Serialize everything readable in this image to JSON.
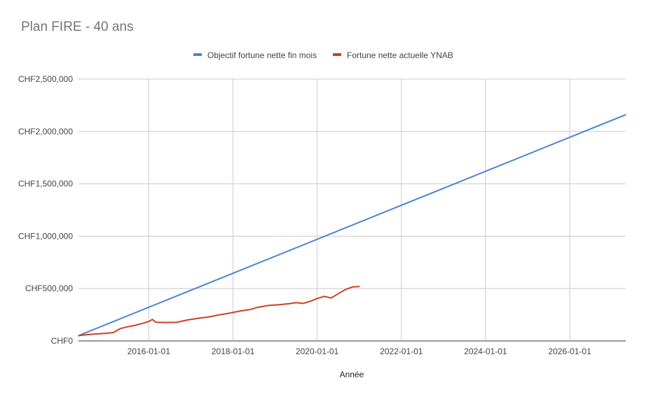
{
  "chart_data": {
    "type": "line",
    "title": "Plan FIRE - 40 ans",
    "xlabel": "Année",
    "ylabel": "",
    "x_range": [
      "2014-05-01",
      "2027-05-01"
    ],
    "ylim": [
      0,
      2500000
    ],
    "y_ticks": [
      0,
      500000,
      1000000,
      1500000,
      2000000,
      2500000
    ],
    "y_tick_labels": [
      "CHF0",
      "CHF500,000",
      "CHF1,000,000",
      "CHF1,500,000",
      "CHF2,000,000",
      "CHF2,500,000"
    ],
    "x_ticks": [
      "2016-01-01",
      "2018-01-01",
      "2020-01-01",
      "2022-01-01",
      "2024-01-01",
      "2026-01-01"
    ],
    "grid": true,
    "legend_position": "top",
    "series": [
      {
        "name": "Objectif fortune nette fin mois",
        "color": "#4a86cf",
        "points": [
          [
            "2014-05-01",
            50000
          ],
          [
            "2027-05-01",
            2160000
          ]
        ]
      },
      {
        "name": "Fortune nette actuelle YNAB",
        "color": "#cc4125",
        "points": [
          [
            "2014-05-01",
            50000
          ],
          [
            "2014-07-01",
            58000
          ],
          [
            "2014-09-01",
            64000
          ],
          [
            "2014-11-01",
            68000
          ],
          [
            "2015-01-01",
            73000
          ],
          [
            "2015-03-01",
            80000
          ],
          [
            "2015-05-01",
            118000
          ],
          [
            "2015-07-01",
            135000
          ],
          [
            "2015-09-01",
            148000
          ],
          [
            "2015-11-01",
            165000
          ],
          [
            "2016-01-01",
            185000
          ],
          [
            "2016-02-01",
            205000
          ],
          [
            "2016-03-01",
            178000
          ],
          [
            "2016-06-01",
            175000
          ],
          [
            "2016-09-01",
            178000
          ],
          [
            "2016-12-01",
            200000
          ],
          [
            "2017-03-01",
            215000
          ],
          [
            "2017-06-01",
            228000
          ],
          [
            "2017-09-01",
            248000
          ],
          [
            "2017-12-01",
            265000
          ],
          [
            "2018-03-01",
            285000
          ],
          [
            "2018-06-01",
            300000
          ],
          [
            "2018-08-01",
            320000
          ],
          [
            "2018-11-01",
            338000
          ],
          [
            "2019-02-01",
            345000
          ],
          [
            "2019-05-01",
            355000
          ],
          [
            "2019-07-01",
            365000
          ],
          [
            "2019-09-01",
            358000
          ],
          [
            "2019-11-01",
            378000
          ],
          [
            "2020-01-01",
            405000
          ],
          [
            "2020-03-01",
            425000
          ],
          [
            "2020-05-01",
            410000
          ],
          [
            "2020-07-01",
            450000
          ],
          [
            "2020-09-01",
            490000
          ],
          [
            "2020-11-01",
            515000
          ],
          [
            "2021-01-01",
            520000
          ]
        ]
      }
    ]
  }
}
